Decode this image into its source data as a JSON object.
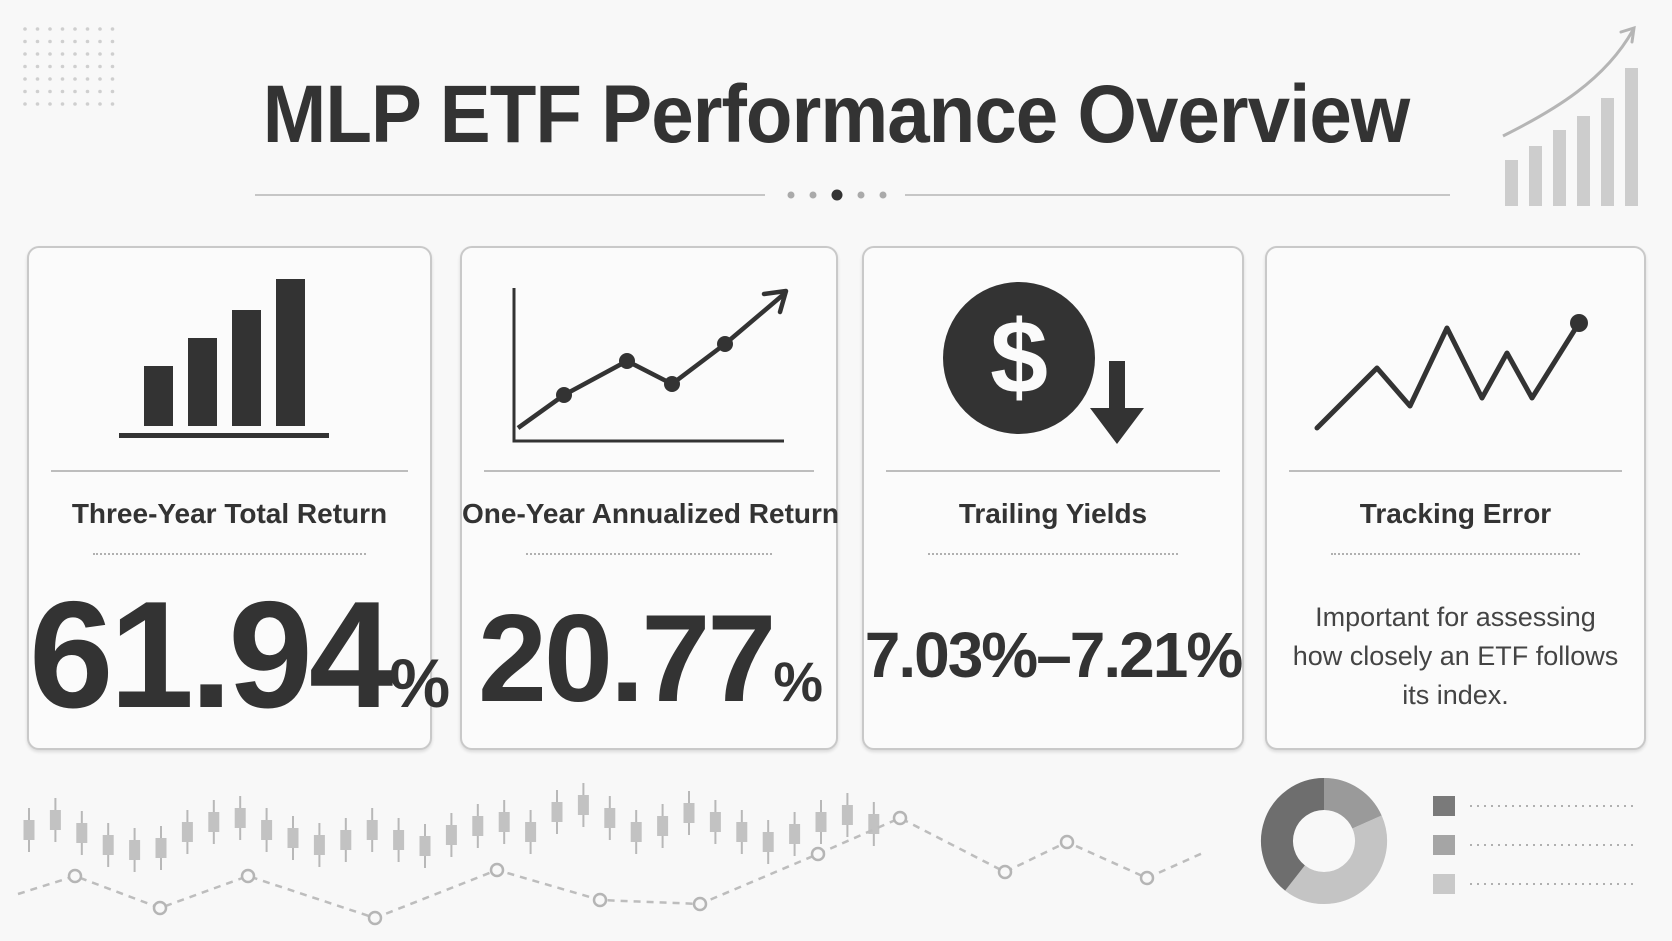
{
  "title": "MLP ETF Performance Overview",
  "cards": [
    {
      "label": "Three-Year Total Return",
      "number": "61.94",
      "unit": "%",
      "icon": "bar-chart-icon"
    },
    {
      "label": "One-Year Annualized Return",
      "number": "20.77",
      "unit": "%",
      "icon": "line-chart-up-icon"
    },
    {
      "label": "Trailing Yields",
      "value": "7.03%–7.21%",
      "icon": "dollar-down-icon"
    },
    {
      "label": "Tracking Error",
      "description": "Important for assessing how closely an ETF follows its index.",
      "icon": "zigzag-line-icon"
    }
  ],
  "colors": {
    "ink": "#333333",
    "background": "#f8f8f8",
    "card_border": "#c9c9c9",
    "decor": "#c4c4c4"
  }
}
